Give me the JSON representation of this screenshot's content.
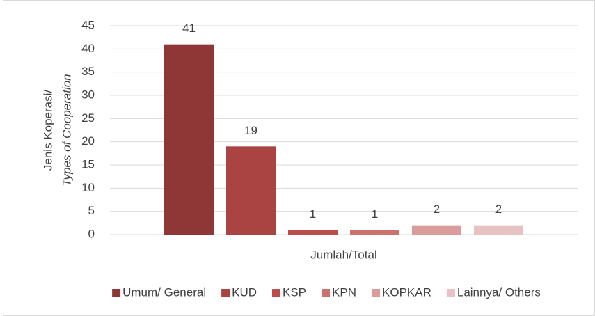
{
  "chart_data": {
    "type": "bar",
    "ylabel": [
      "Jenis Koperasi/",
      "Types of Cooperation"
    ],
    "categories": [
      "Jumlah/Total"
    ],
    "series": [
      {
        "name": "Umum/ General",
        "color": "#8e3736",
        "values": [
          41
        ]
      },
      {
        "name": "KUD",
        "color": "#a94442",
        "values": [
          19
        ]
      },
      {
        "name": "KSP",
        "color": "#bd4d4b",
        "values": [
          1
        ]
      },
      {
        "name": "KPN",
        "color": "#cb716e",
        "values": [
          1
        ]
      },
      {
        "name": "KOPKAR",
        "color": "#d99c9a",
        "values": [
          2
        ]
      },
      {
        "name": "Lainnya/ Others",
        "color": "#e6c3c2",
        "values": [
          2
        ]
      }
    ],
    "ylim": [
      0,
      45
    ],
    "yticks": [
      0,
      5,
      10,
      15,
      20,
      25,
      30,
      35,
      40,
      45
    ],
    "grid": true,
    "legend": "bottom"
  }
}
